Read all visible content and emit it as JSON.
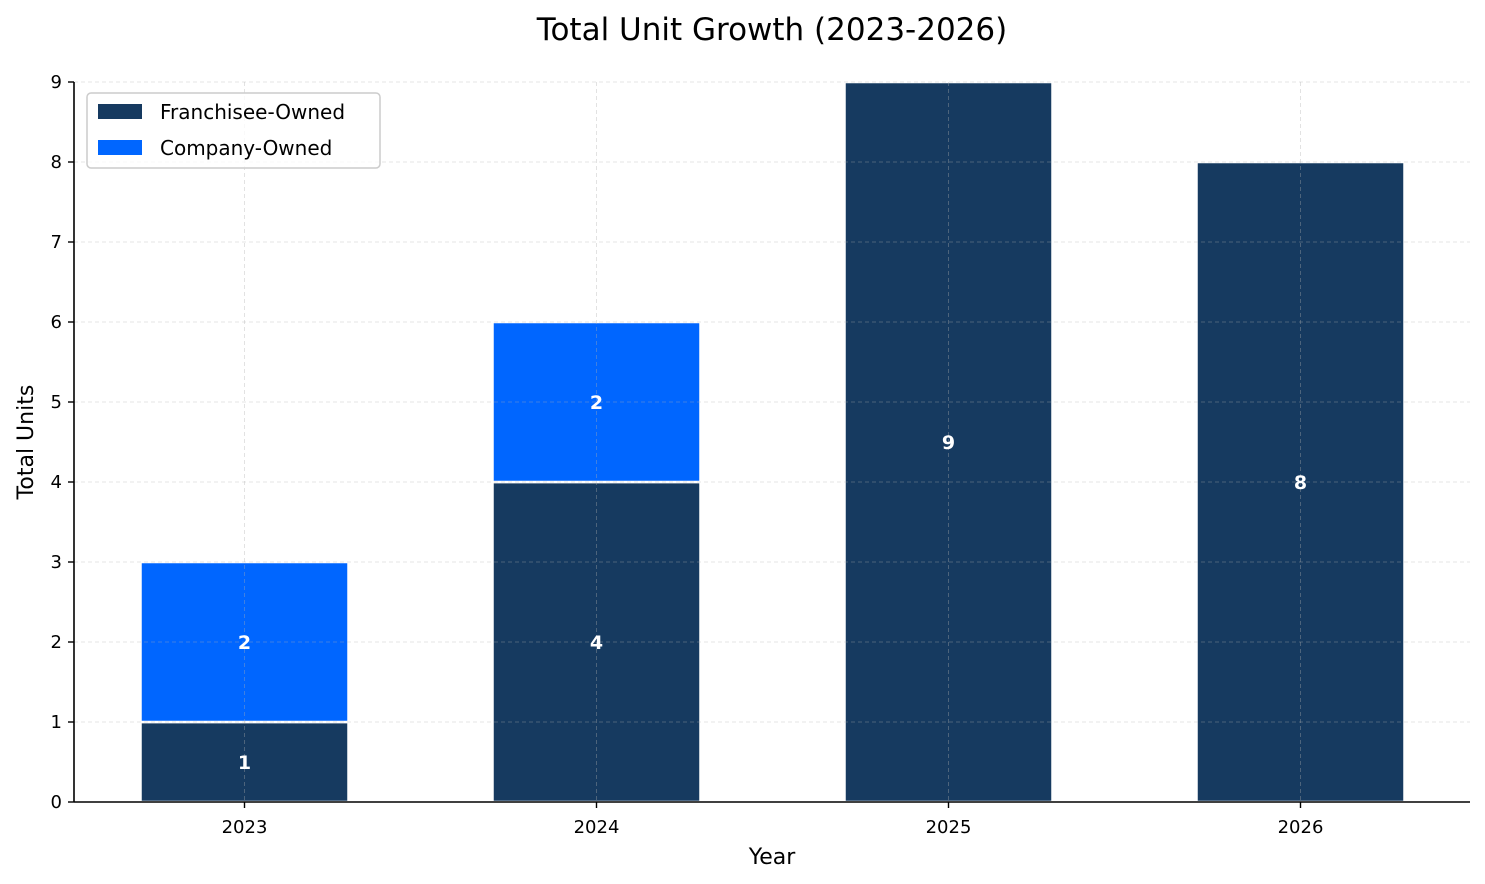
{
  "chart_data": {
    "type": "bar",
    "stacked": true,
    "title": "Total Unit Growth (2023-2026)",
    "xlabel": "Year",
    "ylabel": "Total Units",
    "categories": [
      "2023",
      "2024",
      "2025",
      "2026"
    ],
    "series": [
      {
        "name": "Franchisee-Owned",
        "color": "#163a60",
        "values": [
          1,
          4,
          9,
          8
        ],
        "labels": [
          "1",
          "4",
          "9",
          "8"
        ]
      },
      {
        "name": "Company-Owned",
        "color": "#0066ff",
        "values": [
          2,
          2,
          0,
          0
        ],
        "labels": [
          "2",
          "2",
          "",
          ""
        ]
      }
    ],
    "ylim": [
      0,
      9
    ],
    "yticks": [
      "0",
      "1",
      "2",
      "3",
      "4",
      "5",
      "6",
      "7",
      "8",
      "9"
    ],
    "grid": true,
    "legend_position": "top-left"
  }
}
